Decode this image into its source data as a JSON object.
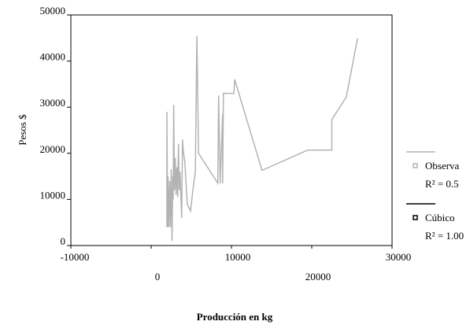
{
  "chart_data": {
    "type": "line",
    "x_label": "Producción en kg",
    "y_label": "Pesos $",
    "xlim": [
      -10000,
      30000
    ],
    "xticks": [
      -10000,
      0,
      10000,
      20000,
      30000
    ],
    "ylim": [
      0,
      50000
    ],
    "yticks": [
      0,
      10000,
      20000,
      30000,
      40000,
      50000
    ],
    "series": [
      {
        "name": "Observa",
        "note": "R² = 0.5",
        "color": "#b3b3b3",
        "x": [
          1960,
          1960,
          2050,
          2100,
          2200,
          2300,
          2400,
          2500,
          2600,
          2700,
          2750,
          2800,
          2900,
          3000,
          3100,
          3200,
          3300,
          3400,
          3500,
          3600,
          3700,
          3800,
          3900,
          4000,
          4200,
          4500,
          4900,
          5200,
          5500,
          5700,
          5900,
          8300,
          8400,
          8600,
          8900,
          8900,
          9000,
          10300,
          10400,
          13800,
          19500,
          22500,
          22500,
          24300,
          25700
        ],
        "values": [
          4000,
          29000,
          4000,
          15000,
          4000,
          14000,
          4000,
          16500,
          1000,
          15000,
          10000,
          30500,
          12000,
          19000,
          11000,
          17000,
          10500,
          22000,
          12000,
          16000,
          11000,
          6000,
          23000,
          20500,
          18000,
          9000,
          7500,
          12000,
          16000,
          45500,
          20000,
          13500,
          32500,
          13500,
          28500,
          13500,
          33000,
          33000,
          36000,
          16300,
          20700,
          20700,
          27300,
          32200,
          44900
        ]
      },
      {
        "name": "Cúbico",
        "note": "R² = 1.00",
        "color": "#000000",
        "x": [],
        "values": []
      }
    ]
  }
}
